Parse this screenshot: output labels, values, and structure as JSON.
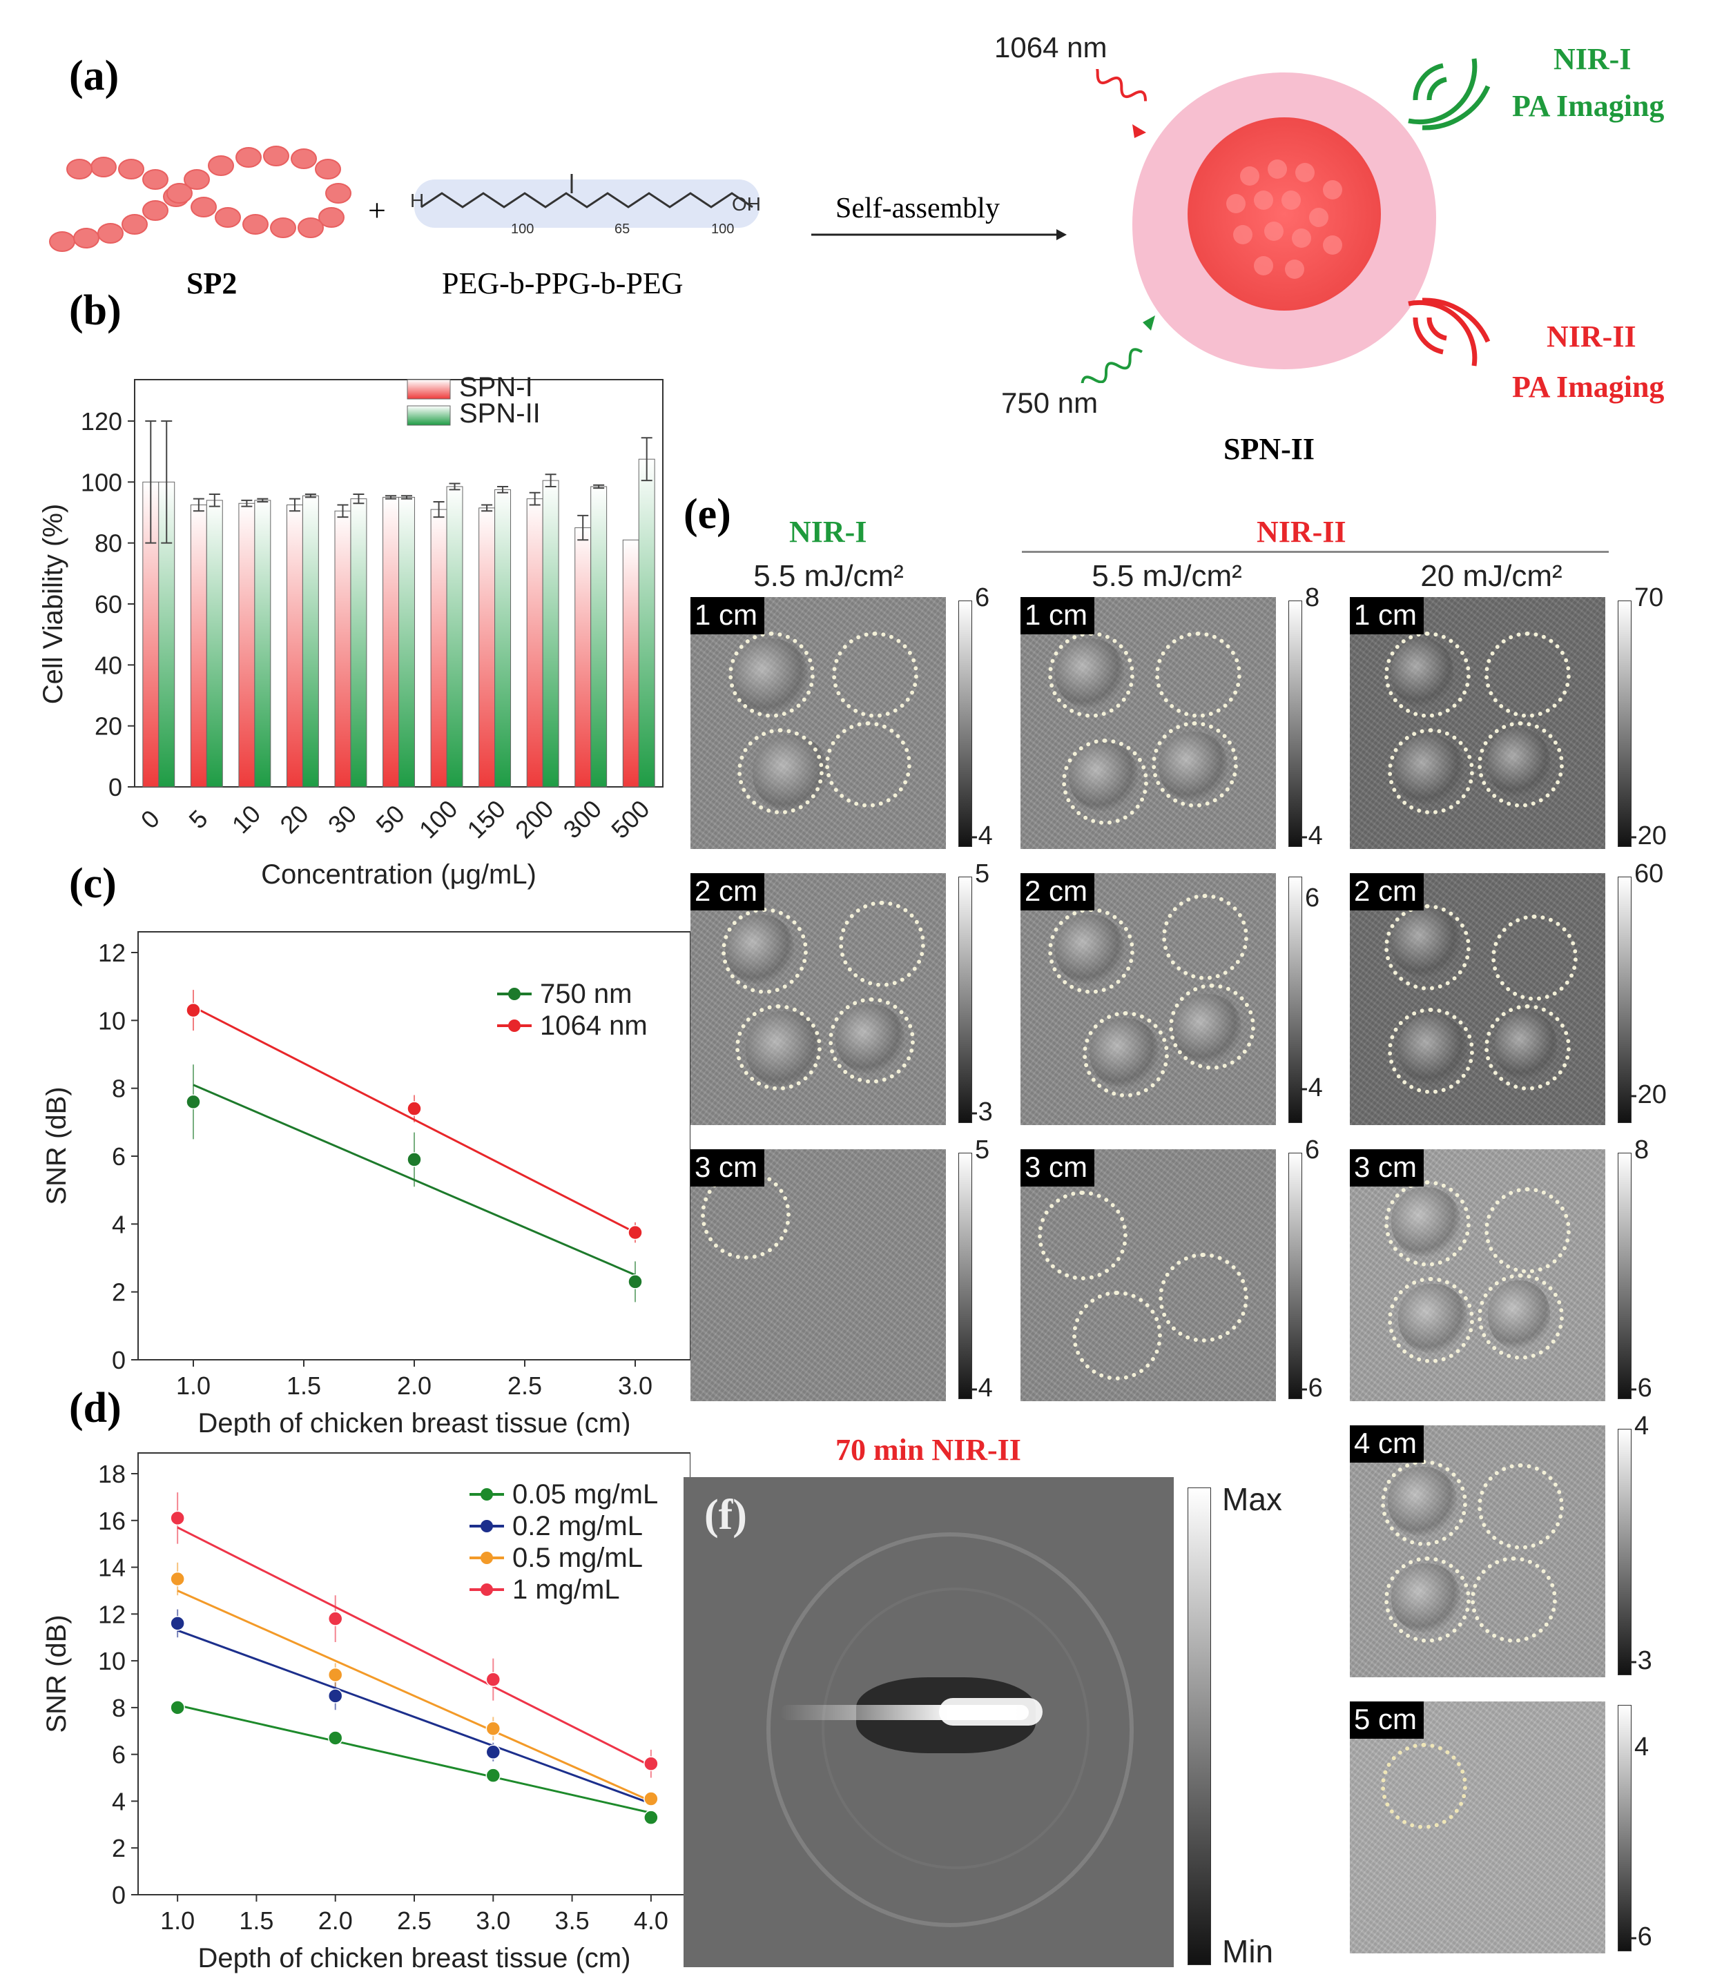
{
  "panel_a": {
    "letter": "(a)",
    "sp2_label": "SP2",
    "plus": "+",
    "copolymer_label": "PEG-b-PPG-b-PEG",
    "formula": {
      "h": "H",
      "oh": "OH",
      "n1": "100",
      "n2": "65",
      "n3": "100"
    },
    "arrow_label": "Self-assembly",
    "nanoparticle_label": "SPN-II",
    "laser_top": "1064 nm",
    "laser_bottom": "750 nm",
    "nir1_title": "NIR-I",
    "nir1_sub": "PA Imaging",
    "nir2_title": "NIR-II",
    "nir2_sub": "PA Imaging",
    "colors": {
      "green": "#1e9a3c",
      "red": "#e8392e",
      "pink": "#f5b6c8",
      "core": "#f06060"
    }
  },
  "panel_b_letter": "(b)",
  "panel_c_letter": "(c)",
  "panel_d_letter": "(d)",
  "panel_e": {
    "letter": "(e)",
    "header_nir1": "NIR-I",
    "header_nir2": "NIR-II",
    "col_fluence": [
      "5.5 mJ/cm²",
      "5.5 mJ/cm²",
      "20 mJ/cm²"
    ],
    "depths": [
      "1 cm",
      "2 cm",
      "3 cm",
      "4 cm",
      "5 cm"
    ],
    "colorbars": {
      "col1": [
        [
          "6",
          "-4"
        ],
        [
          "5",
          "-3"
        ],
        [
          "5",
          "-4"
        ]
      ],
      "col2": [
        [
          "8",
          "-4"
        ],
        [
          "6",
          "-4"
        ],
        [
          "6",
          "-6"
        ]
      ],
      "col3": [
        [
          "70",
          "-20"
        ],
        [
          "60",
          "-20"
        ],
        [
          "8",
          "-6"
        ],
        [
          "4",
          "-3"
        ],
        [
          "4",
          "-6"
        ]
      ]
    }
  },
  "panel_f": {
    "letter": "(f)",
    "title": "70 min NIR-II",
    "cbar_max": "Max",
    "cbar_min": "Min"
  },
  "chart_data": [
    {
      "id": "b",
      "type": "bar",
      "xlabel": "Concentration (μg/mL)",
      "ylabel": "Cell Viability (%)",
      "ylim": [
        0,
        120
      ],
      "yticks": [
        0,
        20,
        40,
        60,
        80,
        100,
        120
      ],
      "categories": [
        "0",
        "5",
        "10",
        "20",
        "30",
        "50",
        "100",
        "150",
        "200",
        "300",
        "500"
      ],
      "series": [
        {
          "name": "SPN-I",
          "color": "#ee3b3b",
          "values": [
            100,
            92.5,
            93,
            92.5,
            90.5,
            95,
            91,
            91.5,
            94.5,
            85,
            81
          ],
          "errors": [
            20,
            2,
            1,
            2,
            2,
            0.5,
            2.5,
            1,
            2,
            4,
            0
          ]
        },
        {
          "name": "SPN-II",
          "color": "#1f9c45",
          "values": [
            100,
            94,
            94,
            95.5,
            94.5,
            95,
            98.5,
            97.5,
            100.5,
            98.5,
            107.5
          ],
          "errors": [
            20,
            2,
            0.5,
            0.5,
            1.5,
            0.5,
            1,
            1,
            2,
            0.5,
            7
          ]
        }
      ],
      "legend": "top-right"
    },
    {
      "id": "c",
      "type": "scatter",
      "xlabel": "Depth of chicken breast tissue (cm)",
      "ylabel": "SNR (dB)",
      "xlim": [
        0.75,
        3.25
      ],
      "ylim": [
        0,
        12
      ],
      "xticks": [
        1.0,
        1.5,
        2.0,
        2.5,
        3.0
      ],
      "yticks": [
        0,
        2,
        4,
        6,
        8,
        10,
        12
      ],
      "x": [
        1.0,
        2.0,
        3.0
      ],
      "series": [
        {
          "name": "750 nm",
          "color": "#1d7a2b",
          "values": [
            7.6,
            5.9,
            2.3
          ],
          "errors": [
            1.1,
            0.8,
            0.6
          ],
          "fit": [
            [
              1.0,
              8.1
            ],
            [
              3.0,
              2.5
            ]
          ]
        },
        {
          "name": "1064 nm",
          "color": "#e8262a",
          "values": [
            10.3,
            7.4,
            3.75
          ],
          "errors": [
            0.6,
            0.4,
            0.3
          ],
          "fit": [
            [
              1.0,
              10.4
            ],
            [
              3.0,
              3.75
            ]
          ]
        }
      ],
      "legend": "top-right"
    },
    {
      "id": "d",
      "type": "scatter",
      "xlabel": "Depth of chicken breast tissue (cm)",
      "ylabel": "SNR (dB)",
      "xlim": [
        0.75,
        4.25
      ],
      "ylim": [
        0,
        18
      ],
      "xticks": [
        1.0,
        1.5,
        2.0,
        2.5,
        3.0,
        3.5,
        4.0
      ],
      "yticks": [
        0,
        2,
        4,
        6,
        8,
        10,
        12,
        14,
        16,
        18
      ],
      "x": [
        1.0,
        2.0,
        3.0,
        4.0
      ],
      "series": [
        {
          "name": "0.05 mg/mL",
          "color": "#1d8a2b",
          "values": [
            8.0,
            6.7,
            5.1,
            3.3
          ],
          "errors": [
            0.2,
            0.3,
            0.3,
            0.2
          ],
          "fit": [
            [
              1.0,
              8.1
            ],
            [
              4.0,
              3.5
            ]
          ]
        },
        {
          "name": "0.2 mg/mL",
          "color": "#1c2f8c",
          "values": [
            11.6,
            8.5,
            6.1,
            4.1
          ],
          "errors": [
            0.6,
            0.6,
            0.4,
            0.3
          ],
          "fit": [
            [
              1.0,
              11.3
            ],
            [
              4.0,
              3.9
            ]
          ]
        },
        {
          "name": "0.5 mg/mL",
          "color": "#f39a28",
          "values": [
            13.5,
            9.4,
            7.1,
            4.1
          ],
          "errors": [
            0.7,
            0.5,
            0.5,
            0.3
          ],
          "fit": [
            [
              1.0,
              13.0
            ],
            [
              4.0,
              4.0
            ]
          ]
        },
        {
          "name": "1 mg/mL",
          "color": "#ee3448",
          "values": [
            16.1,
            11.8,
            9.2,
            5.6
          ],
          "errors": [
            1.1,
            1.0,
            0.9,
            0.6
          ],
          "fit": [
            [
              1.0,
              15.7
            ],
            [
              4.0,
              5.5
            ]
          ]
        }
      ],
      "legend": "top-right"
    }
  ]
}
